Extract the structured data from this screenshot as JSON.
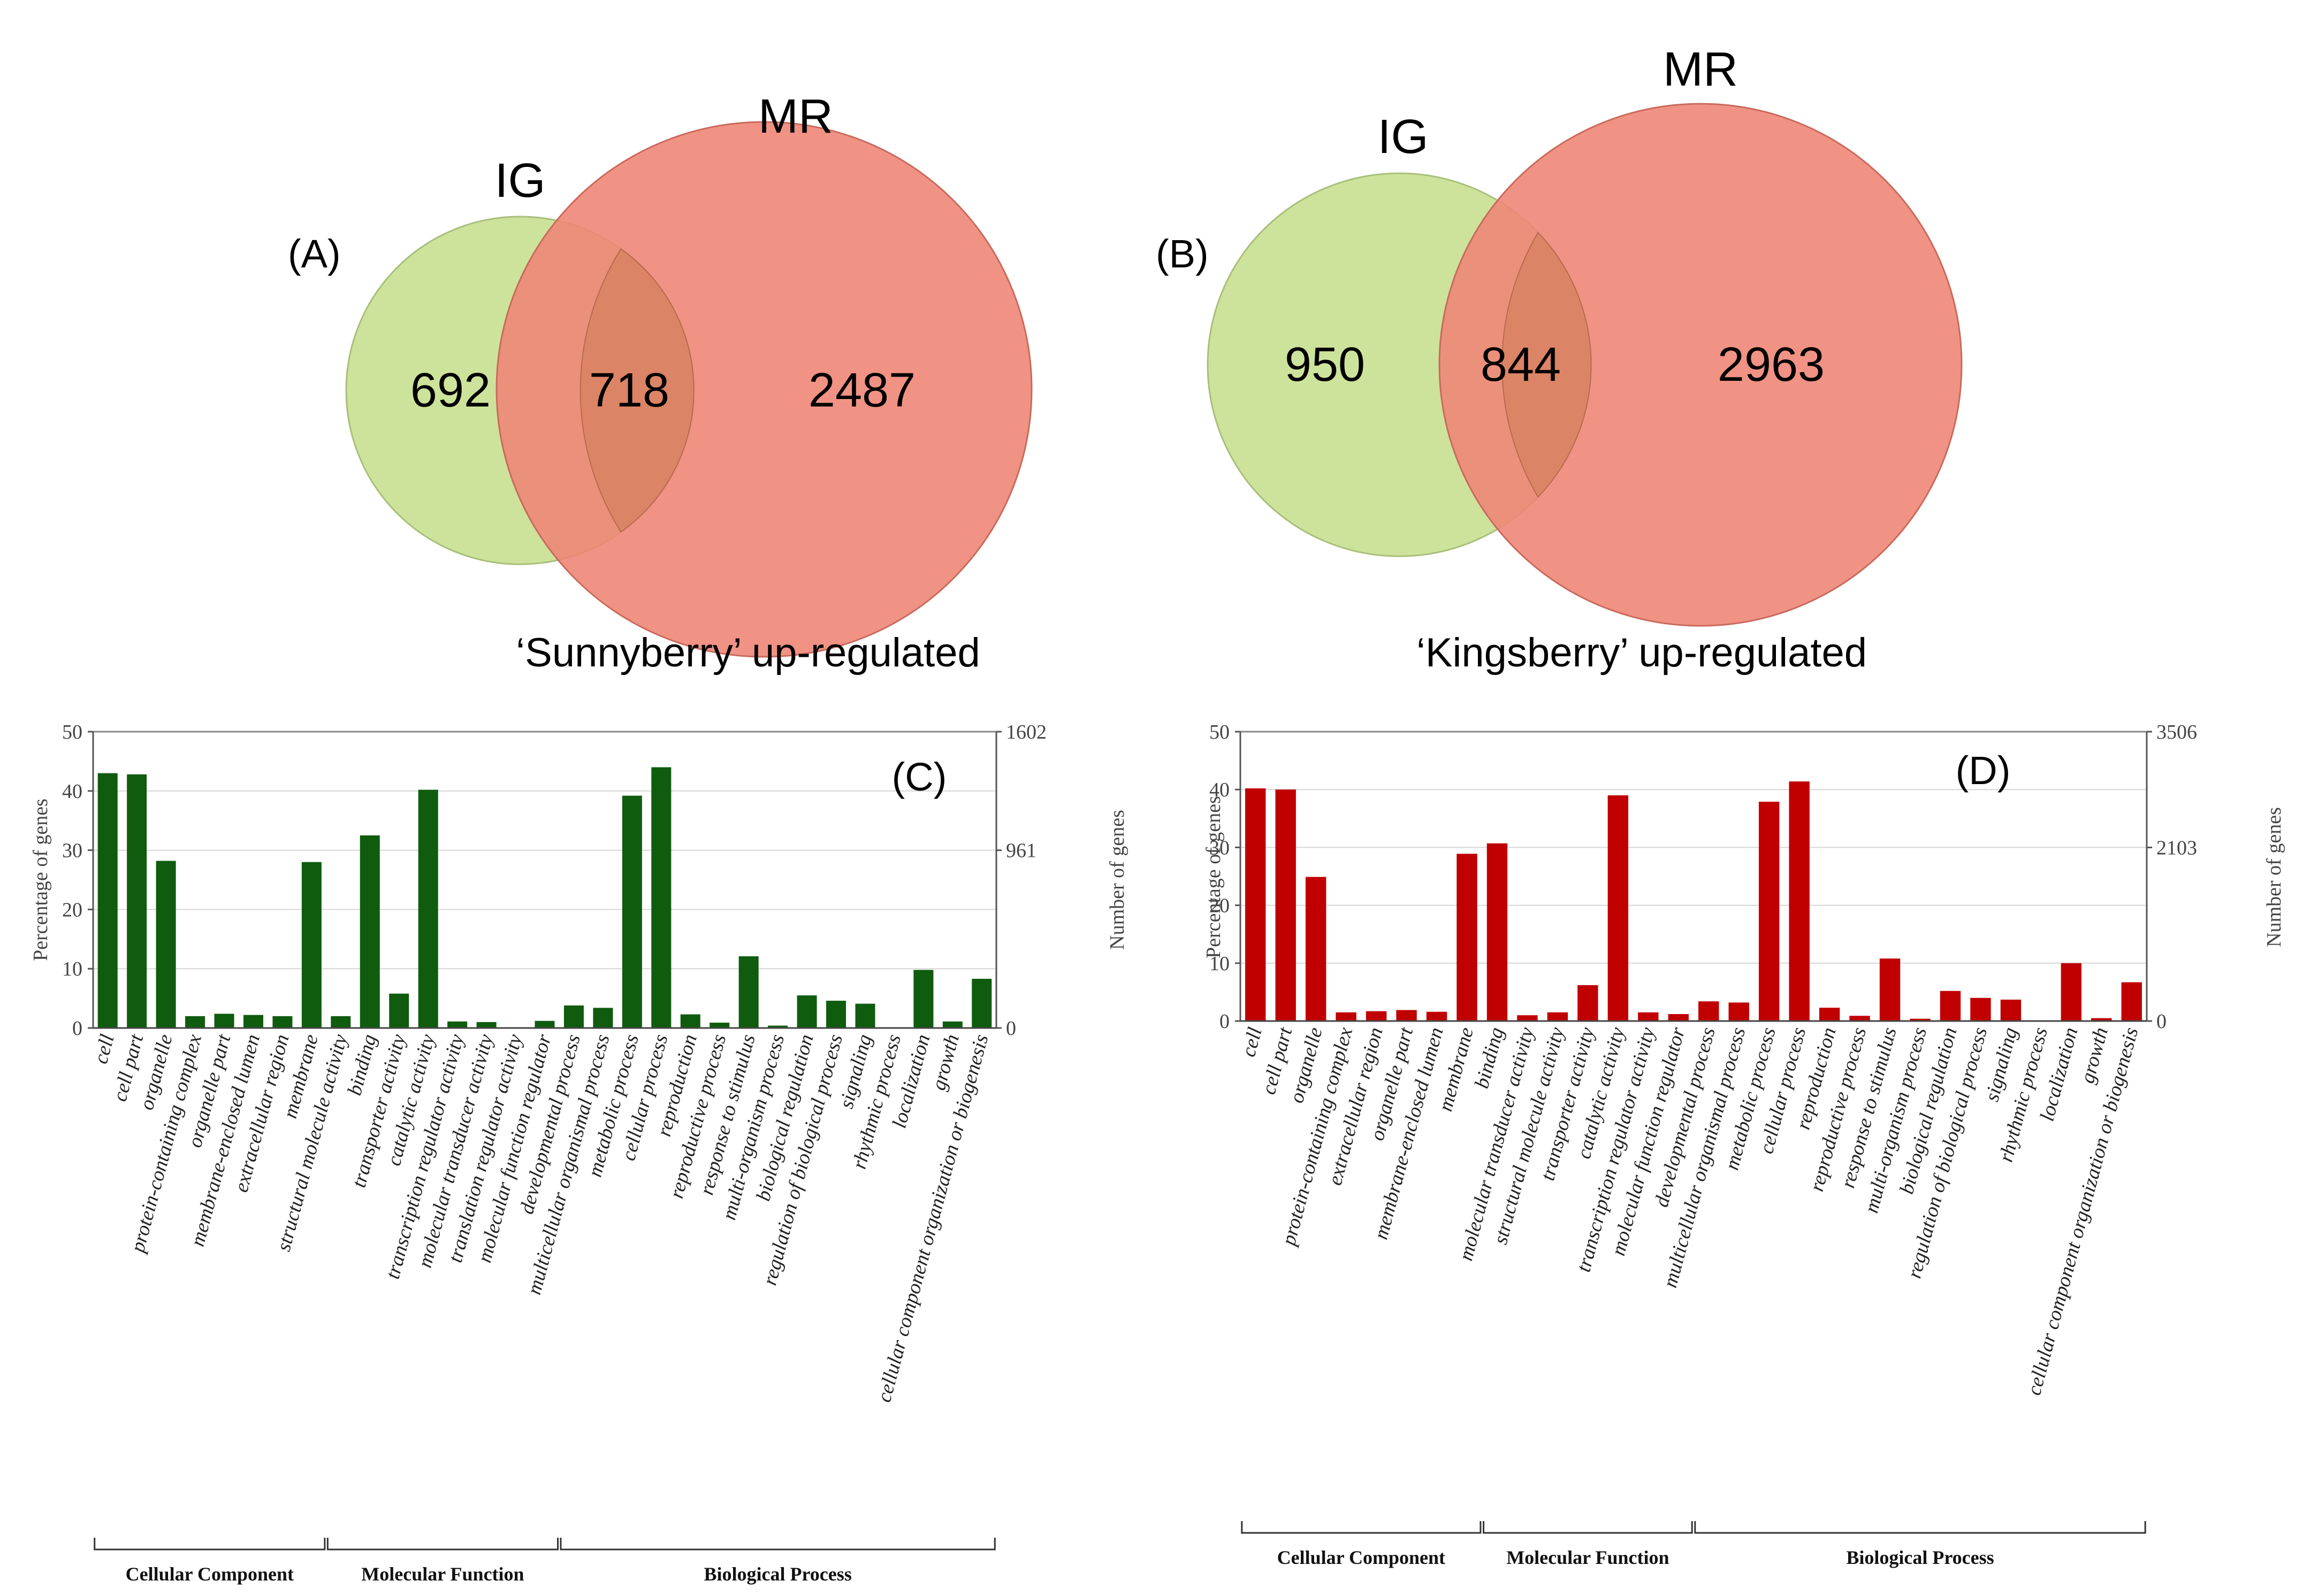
{
  "venn": [
    {
      "panel_label": "(A)",
      "left_set": {
        "label": "IG",
        "count": "692",
        "color": "#cde39b"
      },
      "right_set": {
        "label": "MR",
        "count": "2487",
        "color": "#ee8677"
      },
      "overlap_count": "718",
      "overlap_color": "#dc8466",
      "caption": "‘Sunnyberry’ up-regulated"
    },
    {
      "panel_label": "(B)",
      "left_set": {
        "label": "IG",
        "count": "950",
        "color": "#cde39b"
      },
      "right_set": {
        "label": "MR",
        "count": "2963",
        "color": "#ee8677"
      },
      "overlap_count": "844",
      "overlap_color": "#dc8466",
      "caption": "‘Kingsberry’ up-regulated"
    }
  ],
  "chart_data": [
    {
      "type": "bar",
      "panel_label": "(C)",
      "color": "#0f5c0f",
      "ylabel": "Percentage of genes",
      "y2label": "Number of genes",
      "ylim": [
        0,
        50
      ],
      "yticks": [
        "0",
        "10",
        "20",
        "30",
        "40",
        "50"
      ],
      "y2ticks": [
        "0",
        "961",
        "1602"
      ],
      "y2values": [
        0,
        961,
        1602
      ],
      "y2max": 1602,
      "categories": [
        "cell",
        "cell part",
        "organelle",
        "protein-containing complex",
        "organelle part",
        "membrane-enclosed lumen",
        "extracellular region",
        "membrane",
        "structural molecule activity",
        "binding",
        "transporter activity",
        "catalytic activity",
        "transcription regulator activity",
        "molecular transducer activity",
        "translation regulator activity",
        "molecular function regulator",
        "developmental process",
        "multicellular organismal process",
        "metabolic process",
        "cellular process",
        "reproduction",
        "reproductive process",
        "response to stimulus",
        "multi-organism process",
        "biological regulation",
        "regulation of biological process",
        "signaling",
        "rhythmic process",
        "localization",
        "growth",
        "cellular component organization or biogenesis"
      ],
      "values": [
        43,
        42.8,
        28.2,
        2,
        2.4,
        2.2,
        2,
        28,
        2,
        32.5,
        5.8,
        40.2,
        1.1,
        1,
        0.1,
        1.2,
        3.8,
        3.4,
        39.2,
        44,
        2.3,
        0.9,
        12.1,
        0.4,
        5.5,
        4.6,
        4.1,
        0.1,
        9.8,
        1.1,
        8.3
      ],
      "groups": [
        {
          "name": "Cellular Component",
          "start": 0,
          "end": 7
        },
        {
          "name": "Molecular Function",
          "start": 8,
          "end": 15
        },
        {
          "name": "Biological Process",
          "start": 16,
          "end": 30
        }
      ]
    },
    {
      "type": "bar",
      "panel_label": "(D)",
      "color": "#c00000",
      "ylabel": "Percentage of genes",
      "y2label": "Number of genes",
      "ylim": [
        0,
        50
      ],
      "yticks": [
        "0",
        "10",
        "20",
        "30",
        "40",
        "50"
      ],
      "y2ticks": [
        "0",
        "2103",
        "3506"
      ],
      "y2values": [
        0,
        2103,
        3506
      ],
      "y2max": 3506,
      "categories": [
        "cell",
        "cell part",
        "organelle",
        "protein-containing complex",
        "extracellular region",
        "organelle part",
        "membrane-enclosed lumen",
        "membrane",
        "binding",
        "molecular transducer activity",
        "structural molecule activity",
        "transporter activity",
        "catalytic activity",
        "transcription regulator activity",
        "molecular function regulator",
        "developmental process",
        "multicellular organismal process",
        "metabolic process",
        "cellular process",
        "reproduction",
        "reproductive process",
        "response to stimulus",
        "multi-organism process",
        "biological regulation",
        "regulation of biological process",
        "signaling",
        "rhythmic process",
        "localization",
        "growth",
        "cellular component organization or biogenesis"
      ],
      "values": [
        40.2,
        40,
        24.9,
        1.5,
        1.7,
        1.9,
        1.6,
        28.9,
        30.7,
        1,
        1.5,
        6.2,
        39,
        1.5,
        1.2,
        3.4,
        3.2,
        37.9,
        41.4,
        2.3,
        0.9,
        10.8,
        0.4,
        5.2,
        4,
        3.7,
        0.1,
        10,
        0.5,
        6.7
      ],
      "groups": [
        {
          "name": "Cellular Component",
          "start": 0,
          "end": 7
        },
        {
          "name": "Molecular Function",
          "start": 8,
          "end": 14
        },
        {
          "name": "Biological Process",
          "start": 15,
          "end": 29
        }
      ]
    }
  ]
}
